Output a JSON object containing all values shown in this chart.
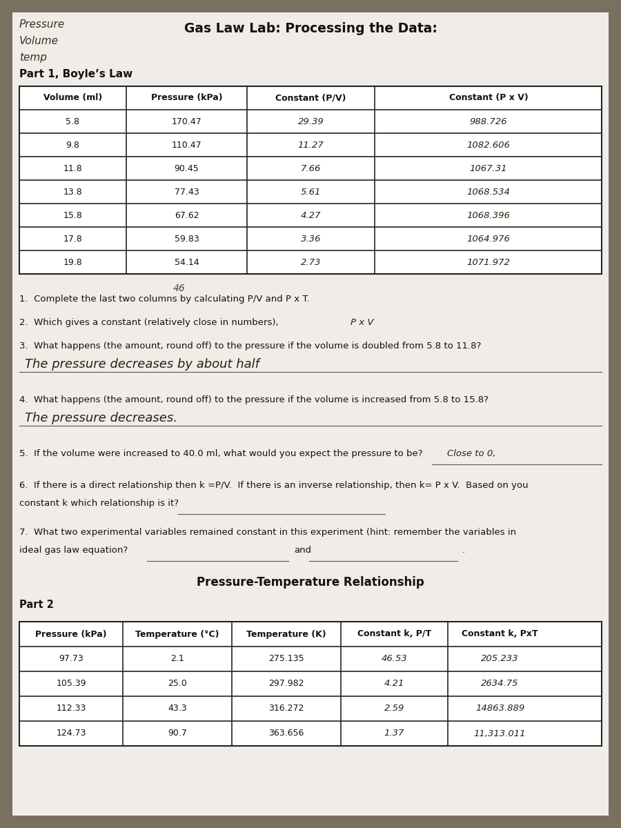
{
  "bg_color": "#7a7060",
  "paper_color": "#f0ede8",
  "title_main": "Gas Law Lab: Processing the Data:",
  "corner_text": [
    "Pressure",
    "Volume",
    "temp"
  ],
  "part1_title": "Part 1, Boyle’s Law",
  "part1_headers": [
    "Volume (ml)",
    "Pressure (kPa)",
    "Constant (P/V)",
    "Constant (P x V)"
  ],
  "part1_data": [
    [
      "5.8",
      "170.47",
      "29.39",
      "988.726"
    ],
    [
      "9.8",
      "110.47",
      "11.27",
      "1082.606"
    ],
    [
      "11.8",
      "90.45",
      "7.66",
      "1067.31"
    ],
    [
      "13.8",
      "77.43",
      "5.61",
      "1068.534"
    ],
    [
      "15.8",
      "67.62",
      "4.27",
      "1068.396"
    ],
    [
      "17.8",
      "59.83",
      "3.36",
      "1064.976"
    ],
    [
      "19.8",
      "54.14",
      "2.73",
      "1071.972"
    ]
  ],
  "part1_col_handwritten": [
    false,
    false,
    true,
    true
  ],
  "q1_text": "1.  Complete the last two columns by calculating P/V and P x T.",
  "q2_text": "2.  Which gives a constant (relatively close in numbers),",
  "q2_answer": "P x V",
  "q3_text": "3.  What happens (the amount, round off) to the pressure if the volume is doubled from 5.8 to 11.8?",
  "q3_answer": "The pressure decreases by about half",
  "q4_text": "4.  What happens (the amount, round off) to the pressure if the volume is increased from 5.8 to 15.8?",
  "q4_answer": "The pressure decreases.",
  "q5_text": "5.  If the volume were increased to 40.0 ml, what would you expect the pressure to be?",
  "q5_answer": "Close to 0,",
  "q6_text": "6.  If there is a direct relationship then k =P/V.  If there is an inverse relationship, then k= P x V.  Based on you",
  "q6_text2": "constant k which relationship is it?",
  "q7_text": "7.  What two experimental variables remained constant in this experiment (hint: remember the variables in",
  "q7_text2": "ideal gas law equation?",
  "q7_and": "and",
  "part2_header_title": "Pressure-Temperature Relationship",
  "part2_label": "Part 2",
  "part2_headers": [
    "Pressure (kPa)",
    "Temperature (°C)",
    "Temperature (K)",
    "Constant k, P/T",
    "Constant k, PxT"
  ],
  "part2_data": [
    [
      "97.73",
      "2.1",
      "275.135",
      "46.53",
      "205.233"
    ],
    [
      "105.39",
      "25.0",
      "297.982",
      "4.21",
      "2634.75"
    ],
    [
      "112.33",
      "43.3",
      "316.272",
      "2.59",
      "14863.889"
    ],
    [
      "124.73",
      "90.7",
      "363.656",
      "1.37",
      "11,313.011"
    ]
  ],
  "part2_col_handwritten": [
    false,
    false,
    false,
    true,
    true
  ],
  "note_below_table1": "46"
}
